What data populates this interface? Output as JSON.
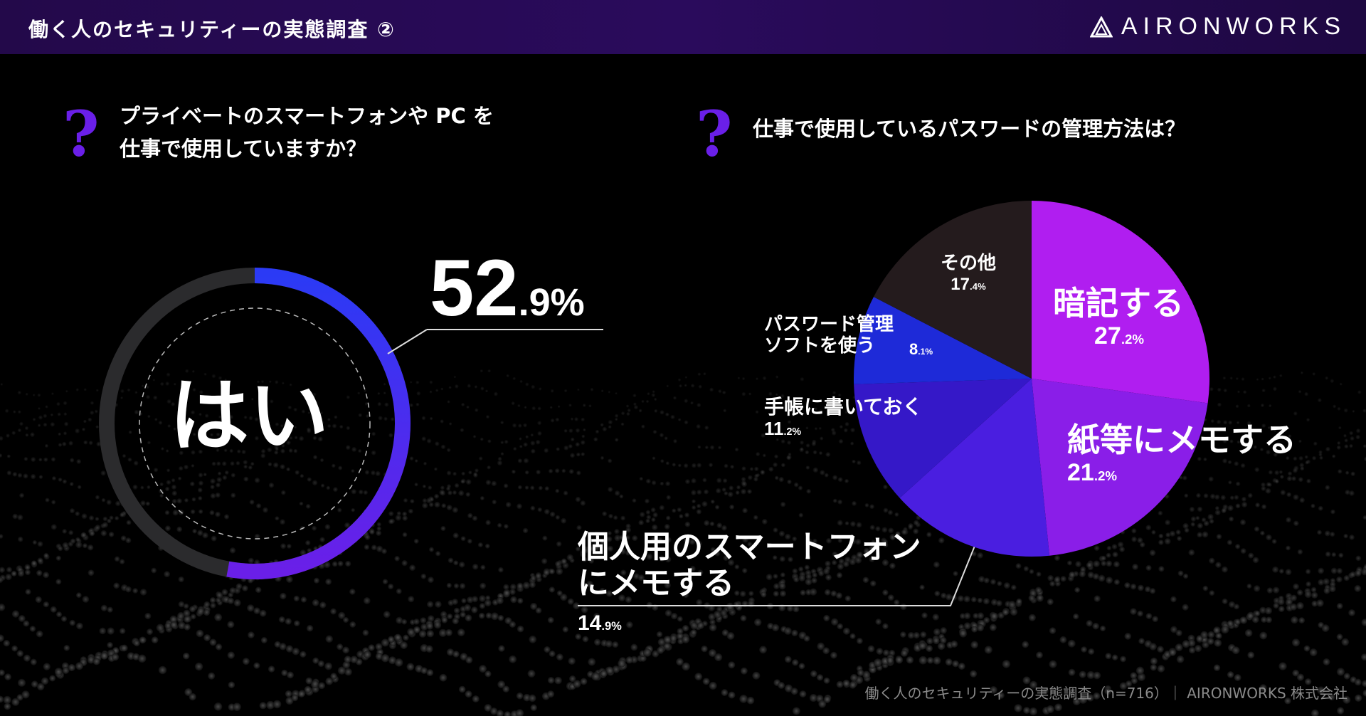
{
  "header": {
    "title": "働く人のセキュリティーの実態調査 ②",
    "logo_text": "AIRONWORKS"
  },
  "question_left": {
    "mark": "?",
    "line1": "プライベートのスマートフォンや PC を",
    "line2": "仕事で使用していますか？"
  },
  "question_right": {
    "mark": "?",
    "text": "仕事で使用しているパスワードの管理方法は？"
  },
  "answer_left": {
    "label": "はい",
    "pct_int": "52",
    "pct_dec": ".9%"
  },
  "footer": {
    "text": "働く人のセキュリティーの実態調査（n=716）｜ AIRONWORKS 株式会社"
  },
  "colors": {
    "accent": "#6a1fe8",
    "ring_fill": "#3a22f0",
    "ring_track": "#2b2b2d"
  },
  "chart_data": [
    {
      "type": "donut",
      "categories": [
        "はい"
      ],
      "values": [
        52.9
      ],
      "unit": "%"
    },
    {
      "type": "pie",
      "unit": "%",
      "categories": [
        "暗記する",
        "紙等にメモする",
        "個人用のスマートフォンにメモする",
        "手帳に書いておく",
        "パスワード管理ソフトを使う",
        "その他"
      ],
      "values": [
        27.2,
        21.2,
        14.9,
        11.2,
        8.1,
        17.4
      ],
      "labels": [
        {
          "name": "暗記する",
          "int": "27",
          "dec": ".2%"
        },
        {
          "name": "紙等にメモする",
          "int": "21",
          "dec": ".2%"
        },
        {
          "name_line1": "個人用のスマートフォン",
          "name_line2": "にメモする",
          "int": "14",
          "dec": ".9%"
        },
        {
          "name": "手帳に書いておく",
          "int": "11",
          "dec": ".2%"
        },
        {
          "name_line1": "パスワード管理",
          "name_line2": "ソフトを使う",
          "int": "8",
          "dec": ".1%"
        },
        {
          "name": "その他",
          "int": "17",
          "dec": ".4%"
        }
      ],
      "colors": [
        "#b01ef0",
        "#8a1ee8",
        "#4a1ee0",
        "#3518c8",
        "#1e2ad8",
        "#241b1d"
      ]
    }
  ]
}
